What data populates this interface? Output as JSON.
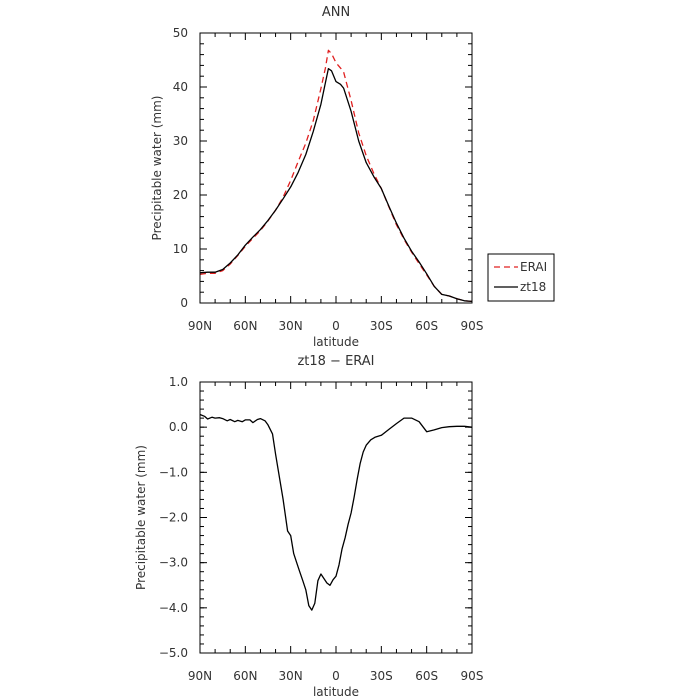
{
  "chart_data": [
    {
      "type": "line",
      "title": "ANN",
      "xlabel": "latitude",
      "ylabel": "Precipitable water (mm)",
      "xlim": [
        90,
        -90
      ],
      "ylim": [
        0,
        50
      ],
      "x_ticks": [
        90,
        60,
        30,
        0,
        -30,
        -60,
        -90
      ],
      "x_tick_labels": [
        "90N",
        "60N",
        "30N",
        "0",
        "30S",
        "60S",
        "90S"
      ],
      "y_ticks": [
        0,
        10,
        20,
        30,
        40,
        50
      ],
      "y_tick_labels": [
        "0",
        "10",
        "20",
        "30",
        "40",
        "50"
      ],
      "legend_position": "outside-right",
      "series": [
        {
          "name": "ERAI",
          "color": "#e02020",
          "dash": "dashed",
          "x": [
            90,
            85,
            80,
            75,
            70,
            65,
            60,
            55,
            50,
            45,
            40,
            35,
            30,
            25,
            20,
            15,
            10,
            7,
            5,
            3,
            0,
            -3,
            -5,
            -10,
            -15,
            -20,
            -25,
            -30,
            -35,
            -40,
            -45,
            -50,
            -55,
            -60,
            -65,
            -70,
            -75,
            -80,
            -85,
            -90
          ],
          "y": [
            5.3,
            5.5,
            5.5,
            6.0,
            7.2,
            8.8,
            10.5,
            12.0,
            13.4,
            15.2,
            17.2,
            19.6,
            22.7,
            26.2,
            29.6,
            33.8,
            39.7,
            43.5,
            46.8,
            46.2,
            44.5,
            43.5,
            42.8,
            37.5,
            31.5,
            27.3,
            24.0,
            21.2,
            17.8,
            14.5,
            11.8,
            9.4,
            7.3,
            5.2,
            3.1,
            1.6,
            1.3,
            0.8,
            0.4,
            0.3
          ]
        },
        {
          "name": "zt18",
          "color": "#000000",
          "dash": "solid",
          "x": [
            90,
            85,
            80,
            75,
            70,
            65,
            60,
            55,
            50,
            45,
            40,
            35,
            30,
            25,
            20,
            15,
            10,
            7,
            5,
            3,
            0,
            -3,
            -5,
            -10,
            -15,
            -20,
            -25,
            -30,
            -35,
            -40,
            -45,
            -50,
            -55,
            -60,
            -65,
            -70,
            -75,
            -80,
            -85,
            -90
          ],
          "y": [
            5.6,
            5.7,
            5.7,
            6.2,
            7.4,
            8.9,
            10.7,
            12.2,
            13.6,
            15.3,
            17.2,
            19.3,
            21.5,
            24.2,
            27.5,
            31.8,
            36.8,
            40.8,
            43.4,
            43.0,
            41.0,
            40.5,
            39.8,
            35.5,
            30.0,
            26.0,
            23.4,
            21.2,
            17.9,
            14.8,
            12.0,
            9.6,
            7.6,
            5.4,
            3.1,
            1.6,
            1.3,
            0.8,
            0.4,
            0.3
          ]
        }
      ]
    },
    {
      "type": "line",
      "title": "zt18 − ERAI",
      "xlabel": "latitude",
      "ylabel": "Precipitable water (mm)",
      "xlim": [
        90,
        -90
      ],
      "ylim": [
        -5,
        1
      ],
      "x_ticks": [
        90,
        60,
        30,
        0,
        -30,
        -60,
        -90
      ],
      "x_tick_labels": [
        "90N",
        "60N",
        "30N",
        "0",
        "30S",
        "60S",
        "90S"
      ],
      "y_ticks": [
        -5,
        -4,
        -3,
        -2,
        -1,
        0,
        1
      ],
      "y_tick_labels": [
        "−5.0",
        "−4.0",
        "−3.0",
        "−2.0",
        "−1.0",
        "0.0",
        "1.0"
      ],
      "series": [
        {
          "color": "#000000",
          "dash": "solid",
          "x": [
            90,
            87,
            85,
            82,
            80,
            77,
            75,
            72,
            70,
            67,
            65,
            62,
            60,
            57,
            55,
            52,
            50,
            47,
            45,
            42,
            40,
            37,
            35,
            32,
            30,
            28,
            26,
            24,
            22,
            20,
            18,
            16,
            14,
            12,
            10,
            8,
            6,
            4,
            2,
            0,
            -2,
            -4,
            -6,
            -8,
            -10,
            -12,
            -14,
            -16,
            -18,
            -20,
            -23,
            -26,
            -30,
            -35,
            -40,
            -45,
            -50,
            -55,
            -60,
            -65,
            -70,
            -75,
            -80,
            -85,
            -90
          ],
          "y": [
            0.28,
            0.24,
            0.18,
            0.22,
            0.2,
            0.21,
            0.19,
            0.14,
            0.17,
            0.12,
            0.15,
            0.12,
            0.16,
            0.16,
            0.1,
            0.17,
            0.19,
            0.14,
            0.05,
            -0.15,
            -0.6,
            -1.2,
            -1.6,
            -2.3,
            -2.4,
            -2.8,
            -3.0,
            -3.2,
            -3.4,
            -3.6,
            -3.95,
            -4.05,
            -3.9,
            -3.4,
            -3.25,
            -3.35,
            -3.45,
            -3.5,
            -3.38,
            -3.3,
            -3.05,
            -2.7,
            -2.45,
            -2.15,
            -1.9,
            -1.55,
            -1.15,
            -0.8,
            -0.55,
            -0.4,
            -0.28,
            -0.22,
            -0.18,
            -0.05,
            0.08,
            0.2,
            0.2,
            0.12,
            -0.1,
            -0.06,
            -0.01,
            0.01,
            0.02,
            0.02,
            0.0
          ]
        }
      ]
    }
  ]
}
